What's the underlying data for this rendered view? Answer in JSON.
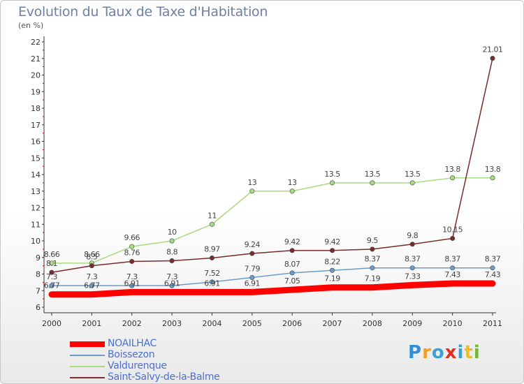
{
  "title": "Evolution du Taux de Taxe d'Habitation",
  "unit_label": "(en %)",
  "logo_text": "Proxiti",
  "logo_colors": [
    "#2f8fd8",
    "#f0a020",
    "#3aa0d8",
    "#e03020",
    "#3aa0d8",
    "#e8c020",
    "#70b830"
  ],
  "chart_data": {
    "type": "line",
    "x": [
      "2000",
      "2001",
      "2002",
      "2003",
      "2004",
      "2005",
      "2006",
      "2007",
      "2008",
      "2009",
      "2010",
      "2011"
    ],
    "yticks": [
      6,
      7,
      8,
      9,
      10,
      11,
      12,
      13,
      14,
      15,
      16,
      17,
      18,
      19,
      20,
      21,
      22
    ],
    "ylim": [
      6,
      22
    ],
    "grid": false,
    "legend_position": "bottom-left",
    "series": [
      {
        "name": "NOAILHAC",
        "color": "#ff0000",
        "width": 9,
        "values": [
          6.77,
          6.77,
          6.91,
          6.91,
          6.91,
          6.91,
          7.05,
          7.19,
          7.19,
          7.33,
          7.43,
          7.43
        ],
        "labels": [
          "6.77",
          "6.77",
          "6.91",
          "6.91",
          "6.91",
          "6.91",
          "7.05",
          "7.19",
          "7.19",
          "7.33",
          "7.43",
          "7.43"
        ]
      },
      {
        "name": "Boissezon",
        "color": "#6a9ccc",
        "width": 1.5,
        "values": [
          7.3,
          7.3,
          7.3,
          7.3,
          7.52,
          7.79,
          8.07,
          8.22,
          8.37,
          8.37,
          8.37,
          8.37
        ],
        "labels": [
          "7.3",
          "7.3",
          "7.3",
          "7.3",
          "7.52",
          "7.79",
          "8.07",
          "8.22",
          "8.37",
          "8.37",
          "8.37",
          "8.37"
        ]
      },
      {
        "name": "Valdurenque",
        "color": "#a8dc80",
        "width": 1.5,
        "values": [
          8.66,
          8.66,
          9.66,
          10,
          11,
          13,
          13,
          13.5,
          13.5,
          13.5,
          13.8,
          13.8
        ],
        "labels": [
          "8.66",
          "8.66",
          "9.66",
          "10",
          "11",
          "13",
          "13",
          "13.5",
          "13.5",
          "13.5",
          "13.8",
          "13.8"
        ]
      },
      {
        "name": "Saint-Salvy-de-la-Balme",
        "color": "#7a2b2b",
        "width": 1.5,
        "values": [
          8.1,
          8.5,
          8.76,
          8.8,
          8.97,
          9.24,
          9.42,
          9.42,
          9.5,
          9.8,
          10.15,
          21.01
        ],
        "labels": [
          "8.1",
          "8.5",
          "8.76",
          "8.8",
          "8.97",
          "9.24",
          "9.42",
          "9.42",
          "9.5",
          "9.8",
          "10.15",
          "21.01"
        ]
      }
    ]
  }
}
